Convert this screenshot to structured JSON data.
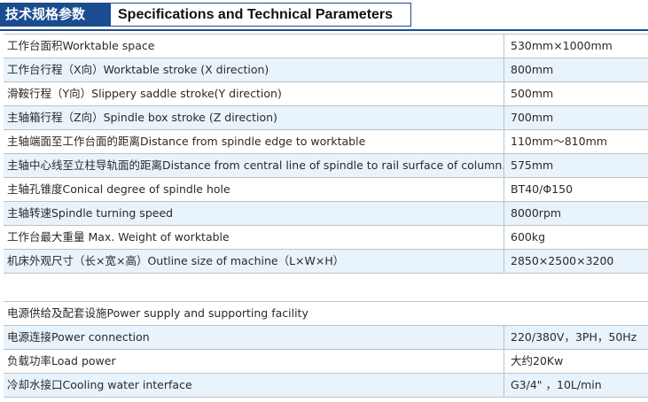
{
  "header": {
    "badge": "技术规格参数",
    "title": "Specifications and Technical Parameters"
  },
  "specs": [
    {
      "label": "工作台面积Worktable space",
      "value": "530mm×1000mm"
    },
    {
      "label": "工作台行程（X向）Worktable stroke (X direction)",
      "value": "800mm"
    },
    {
      "label": "滑鞍行程（Y向）Slippery saddle stroke(Y direction)",
      "value": "500mm"
    },
    {
      "label": "主轴箱行程（Z向）Spindle box stroke (Z direction)",
      "value": "700mm"
    },
    {
      "label": "主轴端面至工作台面的距离Distance from spindle edge to worktable",
      "value": "110mm～810mm"
    },
    {
      "label": "主轴中心线至立柱导轨面的距离Distance from central line of spindle to rail surface of column.",
      "value": "575mm"
    },
    {
      "label": "主轴孔锥度Conical degree of spindle hole",
      "value": "BT40/Φ150"
    },
    {
      "label": "主轴转速Spindle turning speed",
      "value": "8000rpm"
    },
    {
      "label": "工作台最大重量 Max. Weight of worktable",
      "value": " 600kg"
    },
    {
      "label": "机床外观尺寸（长×宽×高）Outline size of machine（L×W×H）",
      "value": "2850×2500×3200"
    }
  ],
  "power": {
    "section_label": "电源供给及配套设施Power supply and supporting facility",
    "rows": [
      {
        "label": "电源连接Power connection",
        "value": "220/380V，3PH，50Hz"
      },
      {
        "label": "负载功率Load power",
        "value": "大约20Kw"
      },
      {
        "label": "冷却水接口Cooling water interface",
        "value": "G3/4\"  ，10L/min"
      }
    ]
  }
}
